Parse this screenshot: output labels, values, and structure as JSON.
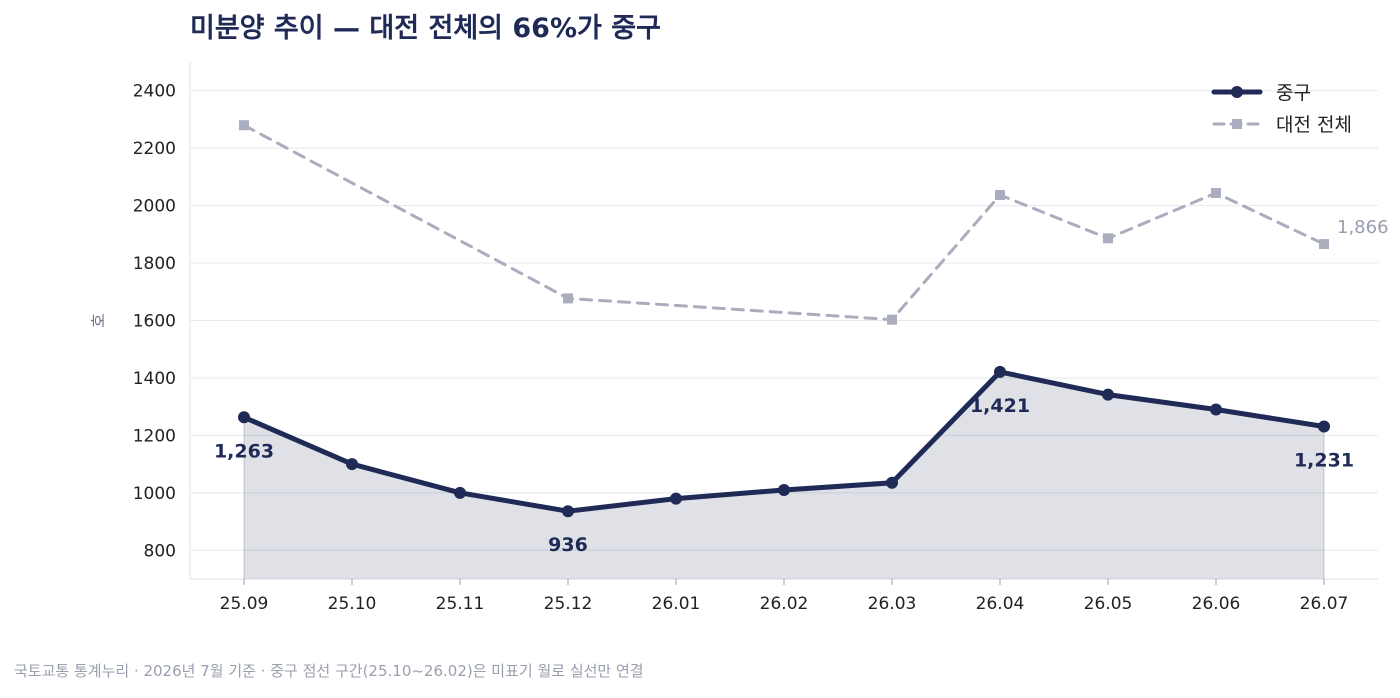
{
  "title": "미분양 추이 — 대전 전체의 66%가 중구",
  "footer": "국토교통 통계누리 · 2026년 7월 기준 · 중구 점선 구간(25.10~26.02)은 미표기 월로 실선만 연결",
  "chart_data": {
    "type": "line",
    "x": [
      "25.09",
      "25.10",
      "25.11",
      "25.12",
      "26.01",
      "26.02",
      "26.03",
      "26.04",
      "26.05",
      "26.06",
      "26.07"
    ],
    "ylabel": "호",
    "ylim": [
      700,
      2500
    ],
    "yticks": [
      800,
      1000,
      1200,
      1400,
      1600,
      1800,
      2000,
      2200,
      2400
    ],
    "grid": true,
    "legend_position": "top-right",
    "series": [
      {
        "name": "중구",
        "color": "#1f2a56",
        "style": "solid",
        "area_fill": true,
        "values": [
          1263,
          1100,
          1000,
          936,
          980,
          1010,
          1035,
          1421,
          1342,
          1290,
          1231
        ],
        "labels": [
          {
            "index": 0,
            "text": "1,263"
          },
          {
            "index": 3,
            "text": "936"
          },
          {
            "index": 7,
            "text": "1,421"
          },
          {
            "index": 10,
            "text": "1,231"
          }
        ]
      },
      {
        "name": "대전 전체",
        "color": "#a9adbd",
        "style": "dashed",
        "area_fill": false,
        "values": [
          2280,
          null,
          null,
          1677,
          null,
          null,
          1603,
          2037,
          1886,
          2044,
          1866
        ],
        "labels": [
          {
            "index": 10,
            "text": "1,866"
          }
        ]
      }
    ]
  }
}
